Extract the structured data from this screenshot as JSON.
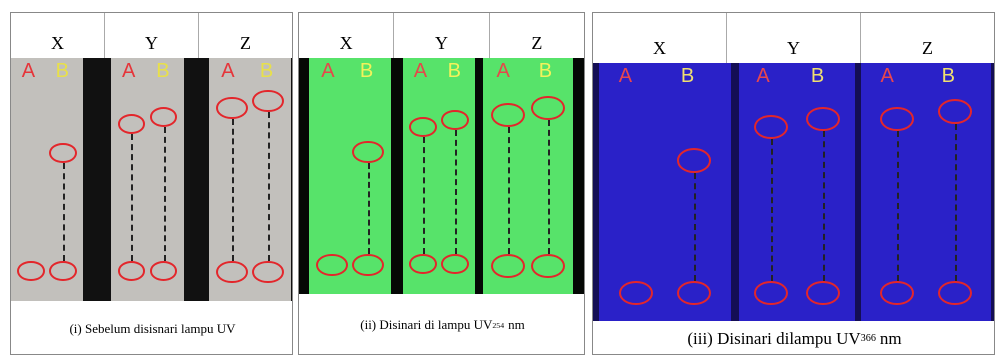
{
  "panels": [
    {
      "headers": [
        "X",
        "Y",
        "Z"
      ],
      "plates": [
        {
          "labels": [
            "A",
            "B"
          ]
        },
        {
          "labels": [
            "A",
            "B"
          ]
        },
        {
          "labels": [
            "A",
            "B"
          ]
        }
      ],
      "caption": {
        "text": "(i) Sebelum disisnari  lampu UV"
      }
    },
    {
      "headers": [
        "X",
        "Y",
        "Z"
      ],
      "plates": [
        {
          "labels": [
            "A",
            "B"
          ]
        },
        {
          "labels": [
            "A",
            "B"
          ]
        },
        {
          "labels": [
            "A",
            "B"
          ]
        }
      ],
      "caption": {
        "text": "(ii) Disinari di lampu UV",
        "subscript": "254",
        "suffix": "nm"
      }
    },
    {
      "headers": [
        "X",
        "Y",
        "Z"
      ],
      "plates": [
        {
          "labels": [
            "A",
            "B"
          ]
        },
        {
          "labels": [
            "A",
            "B"
          ]
        },
        {
          "labels": [
            "A",
            "B"
          ]
        }
      ],
      "caption": {
        "text": "(iii) Disinari dilampu UV",
        "subscript": "366",
        "suffix": "nm"
      }
    }
  ]
}
